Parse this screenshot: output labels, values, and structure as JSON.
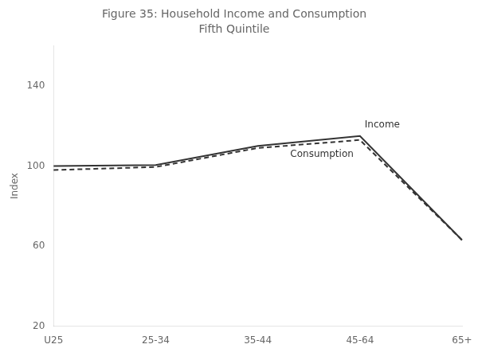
{
  "chart_data": {
    "type": "line",
    "title": "Figure 35: Household Income and Consumption",
    "subtitle": "Fifth Quintile",
    "y_label": "Index",
    "categories": [
      "U25",
      "25-34",
      "35-44",
      "45-64",
      "65+"
    ],
    "series": [
      {
        "name": "Income",
        "color": "#333333",
        "line_style": "solid",
        "values": [
          100,
          100.5,
          110,
          115,
          63
        ]
      },
      {
        "name": "Consumption",
        "color": "#333333",
        "line_style": "dashed",
        "values": [
          98,
          99.5,
          109,
          113,
          63
        ]
      }
    ],
    "ylim": [
      20,
      160
    ],
    "yticks": [
      20,
      60,
      100,
      140
    ],
    "grid": false
  }
}
